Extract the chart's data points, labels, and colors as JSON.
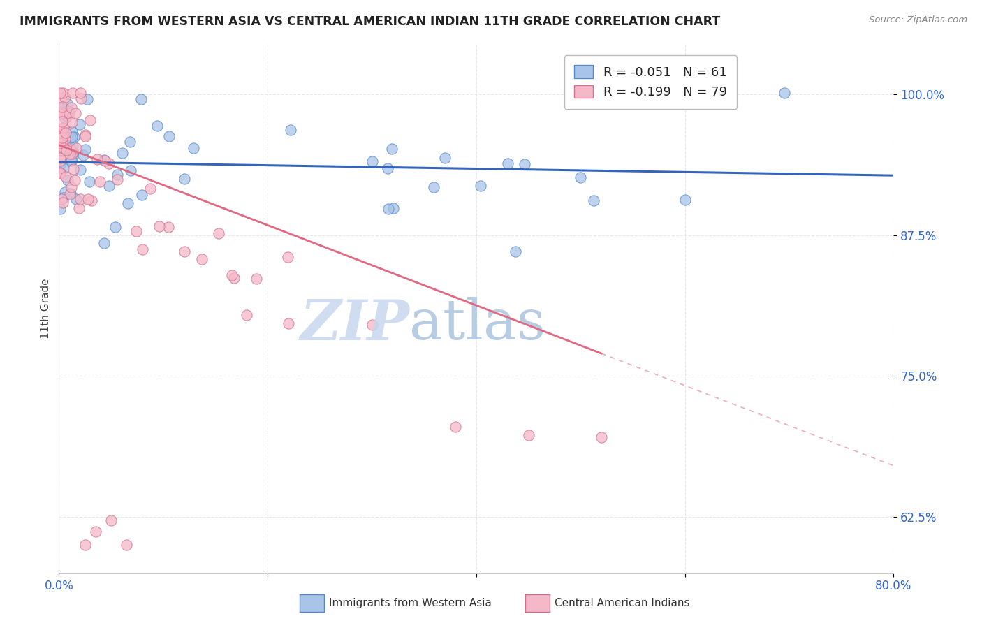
{
  "title": "IMMIGRANTS FROM WESTERN ASIA VS CENTRAL AMERICAN INDIAN 11TH GRADE CORRELATION CHART",
  "source": "Source: ZipAtlas.com",
  "ylabel": "11th Grade",
  "ytick_labels": [
    "62.5%",
    "75.0%",
    "87.5%",
    "100.0%"
  ],
  "ytick_values": [
    0.625,
    0.75,
    0.875,
    1.0
  ],
  "xlim": [
    0.0,
    0.8
  ],
  "ylim": [
    0.575,
    1.045
  ],
  "legend_r_blue": "-0.051",
  "legend_n_blue": "61",
  "legend_r_pink": "-0.199",
  "legend_n_pink": "79",
  "blue_scatter_color": "#a8c4e8",
  "blue_edge_color": "#5588cc",
  "pink_scatter_color": "#f4b8c8",
  "pink_edge_color": "#d07090",
  "blue_line_color": "#3366bb",
  "pink_line_color": "#e06880",
  "grid_color": "#e8e8e8",
  "title_color": "#222222",
  "source_color": "#888888",
  "axis_label_color": "#3366cc",
  "watermark_zip_color": "#c8d8ee",
  "watermark_atlas_color": "#9ab8d8"
}
